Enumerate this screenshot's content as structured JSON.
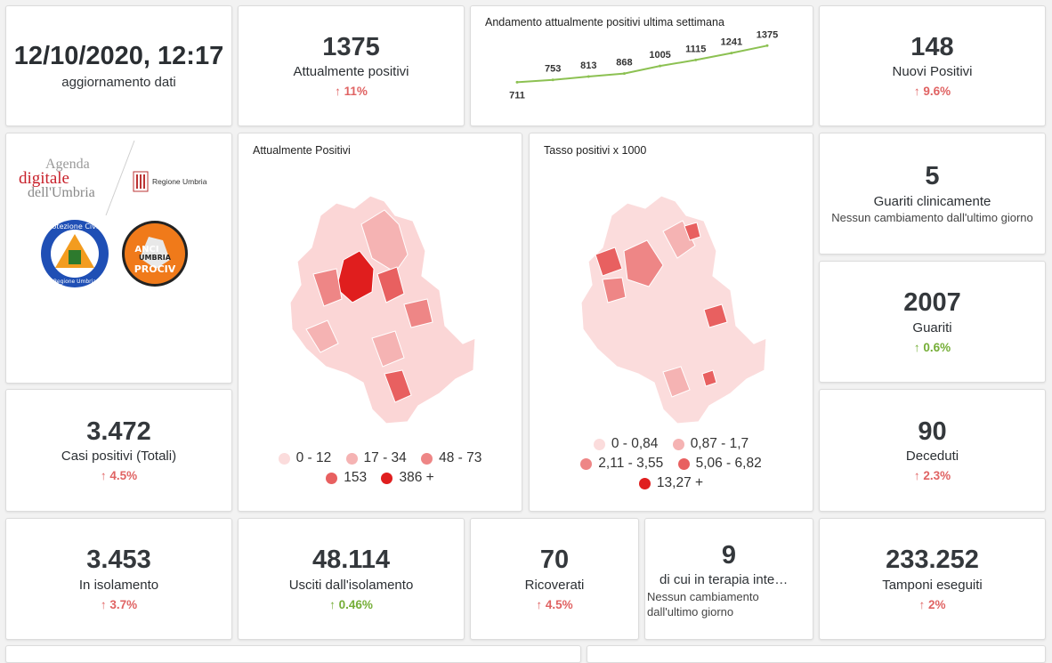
{
  "update": {
    "datetime": "12/10/2020, 12:17",
    "label": "aggiornamento dati"
  },
  "attualmente_positivi": {
    "value": "1375",
    "label": "Attualmente positivi",
    "delta": "11%"
  },
  "trend": {
    "title": "Andamento attualmente positivi ultima settimana",
    "line_color": "#8cc152"
  },
  "chart_data": {
    "type": "line",
    "title": "Andamento attualmente positivi ultima settimana",
    "x": [
      1,
      2,
      3,
      4,
      5,
      6,
      7,
      8
    ],
    "values": [
      711,
      753,
      813,
      868,
      1005,
      1115,
      1241,
      1375
    ],
    "data_labels": [
      "711",
      "753",
      "813",
      "868",
      "1005",
      "1115",
      "1241",
      "1375"
    ],
    "ylim": [
      700,
      1380
    ],
    "grid": false
  },
  "nuovi_positivi": {
    "value": "148",
    "label": "Nuovi Positivi",
    "delta": "9.6%"
  },
  "logos": {
    "agenda": {
      "line1": "Agenda",
      "line2": "digitale",
      "line3": "dell'Umbria"
    },
    "regione": "Regione Umbria",
    "protezione": {
      "top": "Protezione Civile",
      "bottom": "Regione Umbria"
    },
    "anci": {
      "line1": "ANCI",
      "line2": "UMBRIA",
      "line3": "PROCIV"
    }
  },
  "map1": {
    "title": "Attualmente Positivi",
    "legend": [
      "0 - 12",
      "17 - 34",
      "48 - 73",
      "153",
      "386 +"
    ],
    "colors": [
      "#fbdcdc",
      "#f5b3b3",
      "#ee8686",
      "#e86060",
      "#e01e1e"
    ]
  },
  "map2": {
    "title": "Tasso positivi x 1000",
    "legend": [
      "0 - 0,84",
      "0,87 - 1,7",
      "2,11 - 3,55",
      "5,06 - 6,82",
      "13,27 +"
    ],
    "colors": [
      "#fbdcdc",
      "#f5b3b3",
      "#ee8686",
      "#e86060",
      "#e01e1e"
    ]
  },
  "guariti_clinicamente": {
    "value": "5",
    "label": "Guariti clinicamente",
    "note": "Nessun cambiamento dall'ultimo giorno"
  },
  "guariti": {
    "value": "2007",
    "label": "Guariti",
    "delta": "0.6%"
  },
  "casi_totali": {
    "value": "3.472",
    "label": "Casi positivi (Totali)",
    "delta": "4.5%"
  },
  "deceduti": {
    "value": "90",
    "label": "Deceduti",
    "delta": "2.3%"
  },
  "isolamento": {
    "value": "3.453",
    "label": "In isolamento",
    "delta": "3.7%"
  },
  "usciti": {
    "value": "48.114",
    "label": "Usciti dall'isolamento",
    "delta": "0.46%"
  },
  "ricoverati": {
    "value": "70",
    "label": "Ricoverati",
    "delta": "4.5%"
  },
  "terapia": {
    "value": "9",
    "label": "di cui in terapia inte…",
    "note1": "Nessun cambiamento",
    "note2": "dall'ultimo giorno"
  },
  "tamponi": {
    "value": "233.252",
    "label": "Tamponi eseguiti",
    "delta": "2%"
  },
  "arrow": "↑"
}
